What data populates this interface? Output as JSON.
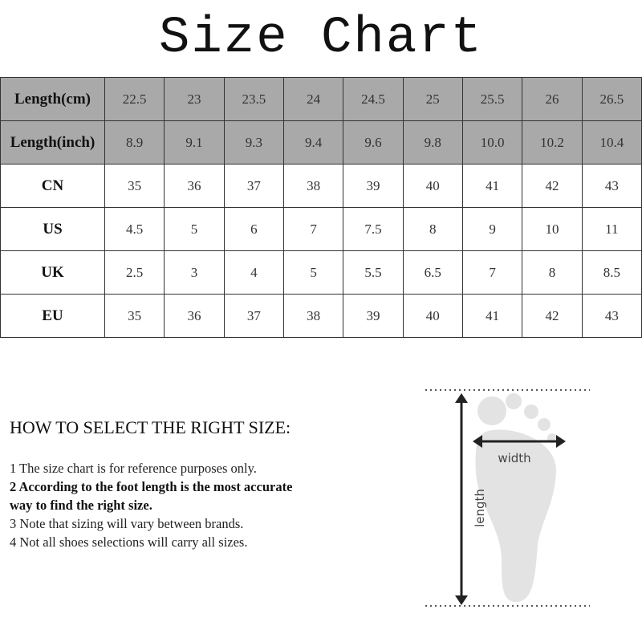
{
  "title": "Size Chart",
  "table": {
    "rows": [
      {
        "label": "Length(cm)",
        "shaded": true,
        "values": [
          "22.5",
          "23",
          "23.5",
          "24",
          "24.5",
          "25",
          "25.5",
          "26",
          "26.5"
        ]
      },
      {
        "label": "Length(inch)",
        "shaded": true,
        "values": [
          "8.9",
          "9.1",
          "9.3",
          "9.4",
          "9.6",
          "9.8",
          "10.0",
          "10.2",
          "10.4"
        ]
      },
      {
        "label": "CN",
        "shaded": false,
        "values": [
          "35",
          "36",
          "37",
          "38",
          "39",
          "40",
          "41",
          "42",
          "43"
        ]
      },
      {
        "label": "US",
        "shaded": false,
        "values": [
          "4.5",
          "5",
          "6",
          "7",
          "7.5",
          "8",
          "9",
          "10",
          "11"
        ]
      },
      {
        "label": "UK",
        "shaded": false,
        "values": [
          "2.5",
          "3",
          "4",
          "5",
          "5.5",
          "6.5",
          "7",
          "8",
          "8.5"
        ]
      },
      {
        "label": "EU",
        "shaded": false,
        "values": [
          "35",
          "36",
          "37",
          "38",
          "39",
          "40",
          "41",
          "42",
          "43"
        ]
      }
    ]
  },
  "guide": {
    "heading": "HOW TO SELECT THE RIGHT SIZE:",
    "notes": [
      "1 The size chart is for reference purposes only.",
      "2 According to the foot length is the most accurate way to find the right size.",
      "3 Note that sizing will vary between brands.",
      "4 Not all shoes selections will carry all sizes."
    ]
  },
  "diagram": {
    "width_label": "width",
    "length_label": "length"
  },
  "colors": {
    "header_fill": "#a9a9a9",
    "foot": "#e3e3e3"
  }
}
